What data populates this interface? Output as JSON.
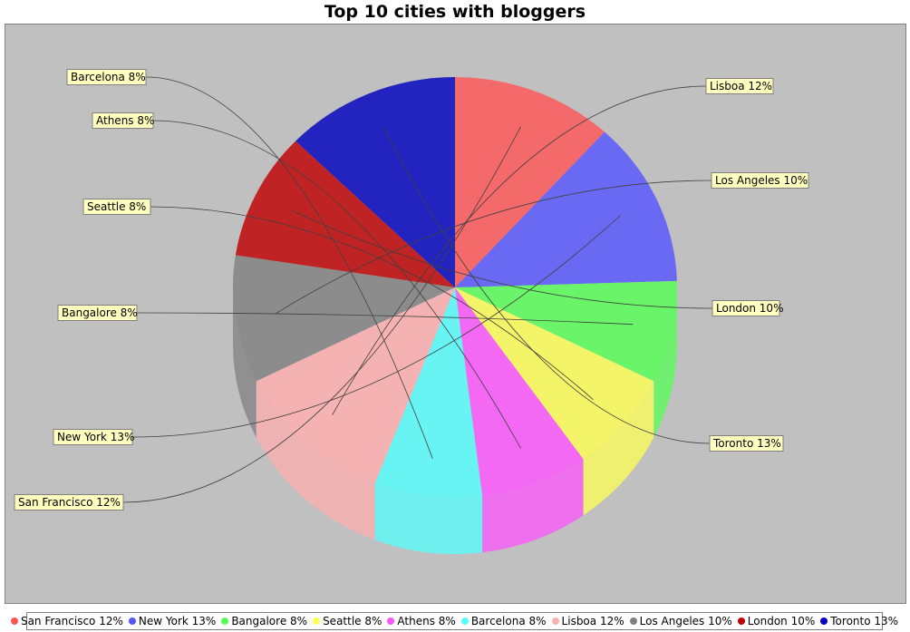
{
  "chart_data": {
    "type": "pie",
    "title": "Top 10 cities with bloggers",
    "slices": [
      {
        "label": "San Francisco 12%",
        "name": "San Francisco",
        "value": 12,
        "color": "#ff5555"
      },
      {
        "label": "New York 13%",
        "name": "New York",
        "value": 13,
        "color": "#5555ff"
      },
      {
        "label": "Bangalore 8%",
        "name": "Bangalore",
        "value": 8,
        "color": "#55ff55"
      },
      {
        "label": "Seattle 8%",
        "name": "Seattle",
        "value": 8,
        "color": "#ffff55"
      },
      {
        "label": "Athens 8%",
        "name": "Athens",
        "value": 8,
        "color": "#ff55ff"
      },
      {
        "label": "Barcelona 8%",
        "name": "Barcelona",
        "value": 8,
        "color": "#55ffff"
      },
      {
        "label": "Lisboa 12%",
        "name": "Lisboa",
        "value": 12,
        "color": "#ffafaf"
      },
      {
        "label": "Los Angeles 10%",
        "name": "Los Angeles",
        "value": 10,
        "color": "#808080"
      },
      {
        "label": "London 10%",
        "name": "London",
        "value": 10,
        "color": "#c00000"
      },
      {
        "label": "Toronto 13%",
        "name": "Toronto",
        "value": 13,
        "color": "#0000c0"
      }
    ],
    "legend_position": "bottom"
  }
}
